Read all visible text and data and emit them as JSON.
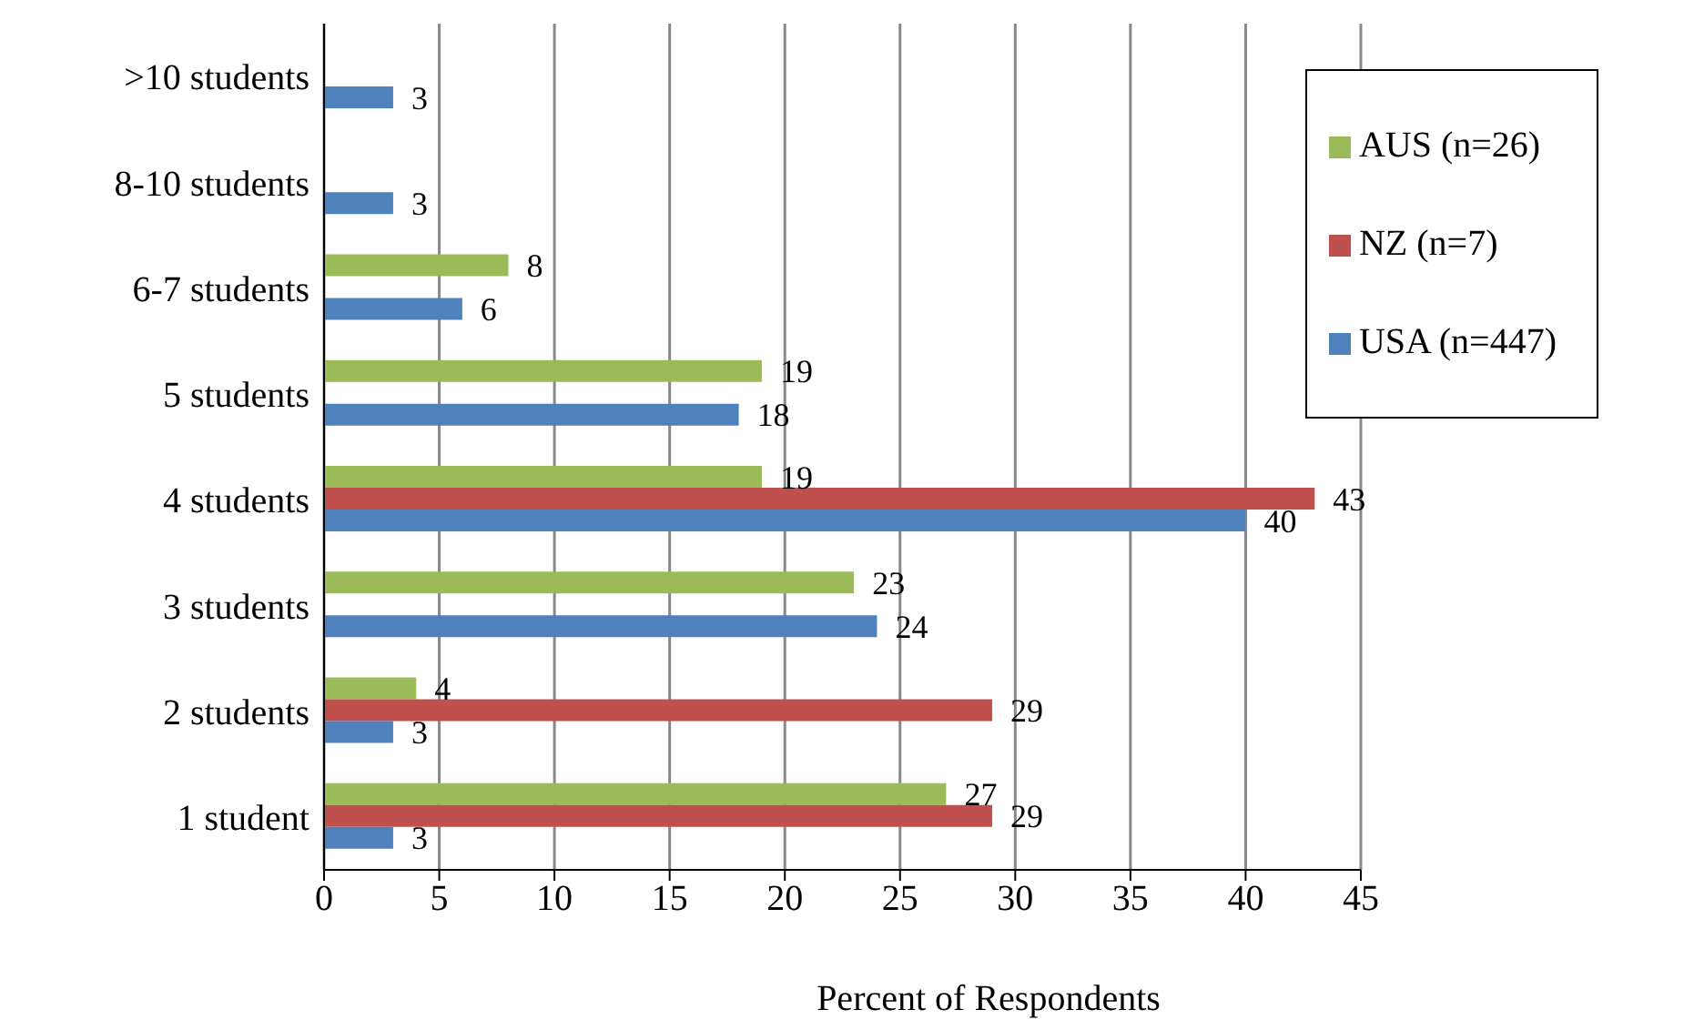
{
  "chart_data": {
    "type": "bar",
    "orientation": "horizontal",
    "xlabel": "Percent of Respondents",
    "categories": [
      ">10 students",
      "8-10 students",
      "6-7 students",
      "5 students",
      "4 students",
      "3 students",
      "2 students",
      "1 student"
    ],
    "series": [
      {
        "name": "AUS (n=26)",
        "color": "#9bbb59",
        "values": [
          null,
          null,
          8,
          19,
          19,
          23,
          4,
          27
        ]
      },
      {
        "name": "NZ (n=7)",
        "color": "#c0504d",
        "values": [
          null,
          null,
          null,
          null,
          43,
          null,
          29,
          29
        ]
      },
      {
        "name": "USA (n=447)",
        "color": "#4f81bd",
        "values": [
          3,
          3,
          6,
          18,
          40,
          24,
          3,
          3
        ]
      }
    ],
    "xlim": [
      0,
      45
    ],
    "xticks": [
      0,
      5,
      10,
      15,
      20,
      25,
      30,
      35,
      40,
      45
    ],
    "grid": "x",
    "legend": "top right",
    "data_labels": true
  }
}
